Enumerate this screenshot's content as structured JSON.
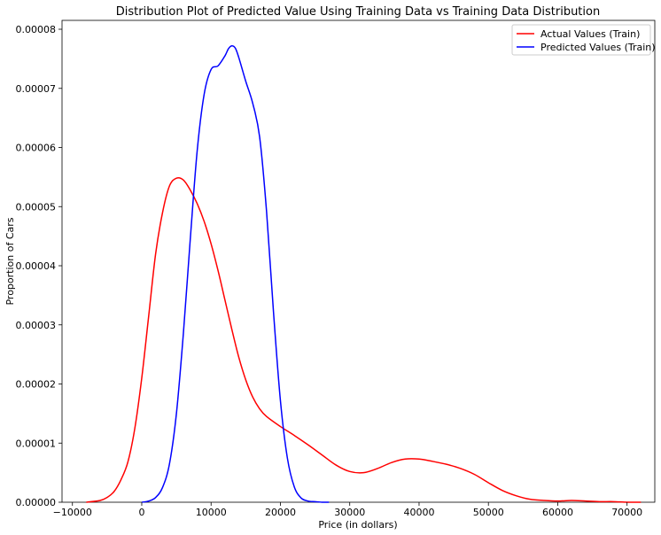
{
  "chart_data": {
    "type": "line",
    "title": "Distribution  Plot of  Predicted Value Using Training Data vs Training Data Distribution",
    "xlabel": "Price (in dollars)",
    "ylabel": "Proportion of Cars",
    "xlim": [
      -11500,
      74000
    ],
    "ylim": [
      0,
      8.15e-05
    ],
    "xticks": [
      -10000,
      0,
      10000,
      20000,
      30000,
      40000,
      50000,
      60000,
      70000
    ],
    "xtick_labels": [
      "−10000",
      "0",
      "10000",
      "20000",
      "30000",
      "40000",
      "50000",
      "60000",
      "70000"
    ],
    "yticks": [
      0,
      1e-05,
      2e-05,
      3e-05,
      4e-05,
      5e-05,
      6e-05,
      7e-05,
      8e-05
    ],
    "ytick_labels": [
      "0.00000",
      "0.00001",
      "0.00002",
      "0.00003",
      "0.00004",
      "0.00005",
      "0.00006",
      "0.00007",
      "0.00008"
    ],
    "legend_position": "top-right",
    "grid": false,
    "series": [
      {
        "name": "Actual Values (Train)",
        "color": "#ff0000",
        "x": [
          -8000,
          -6000,
          -5000,
          -4000,
          -3000,
          -2000,
          -1000,
          0,
          1000,
          2000,
          3000,
          4000,
          5000,
          6000,
          7000,
          8000,
          9000,
          10000,
          11000,
          12000,
          13000,
          14000,
          15000,
          16000,
          17000,
          18000,
          20000,
          22000,
          24000,
          26000,
          28000,
          30000,
          32000,
          34000,
          36000,
          38000,
          40000,
          42000,
          44000,
          46000,
          48000,
          50000,
          52000,
          54000,
          56000,
          58000,
          60000,
          62000,
          64000,
          66000,
          68000,
          70000,
          72000
        ],
        "y": [
          0.0,
          3e-07,
          8e-07,
          1.8e-06,
          3.8e-06,
          6.8e-06,
          1.25e-05,
          2.1e-05,
          3.15e-05,
          4.2e-05,
          4.9e-05,
          5.35e-05,
          5.48e-05,
          5.45e-05,
          5.28e-05,
          5.05e-05,
          4.75e-05,
          4.37e-05,
          3.92e-05,
          3.42e-05,
          2.92e-05,
          2.45e-05,
          2.07e-05,
          1.78e-05,
          1.58e-05,
          1.45e-05,
          1.28e-05,
          1.13e-05,
          9.7e-06,
          8e-06,
          6.3e-06,
          5.2e-06,
          5e-06,
          5.7e-06,
          6.7e-06,
          7.3e-06,
          7.3e-06,
          6.9e-06,
          6.4e-06,
          5.7e-06,
          4.7e-06,
          3.3e-06,
          2e-06,
          1.1e-06,
          5e-07,
          3e-07,
          2e-07,
          3e-07,
          2e-07,
          1e-07,
          1e-07,
          0.0,
          0.0
        ]
      },
      {
        "name": "Predicted Values (Train)",
        "color": "#0000ff",
        "x": [
          0,
          1000,
          2000,
          3000,
          4000,
          5000,
          6000,
          7000,
          8000,
          9000,
          10000,
          11000,
          12000,
          12500,
          13000,
          13500,
          14000,
          15000,
          16000,
          17000,
          18000,
          19000,
          20000,
          21000,
          22000,
          23000,
          24000,
          25000,
          26000,
          27000
        ],
        "y": [
          0.0,
          2e-07,
          8e-07,
          2.5e-06,
          6.5e-06,
          1.5e-05,
          2.85e-05,
          4.45e-05,
          5.95e-05,
          6.9e-05,
          7.32e-05,
          7.38e-05,
          7.55e-05,
          7.67e-05,
          7.72e-05,
          7.68e-05,
          7.52e-05,
          7.12e-05,
          6.75e-05,
          6.18e-05,
          4.92e-05,
          3.22e-05,
          1.72e-05,
          7.5e-06,
          2.6e-06,
          7e-07,
          2e-07,
          1e-07,
          0.0,
          0.0
        ]
      }
    ]
  }
}
